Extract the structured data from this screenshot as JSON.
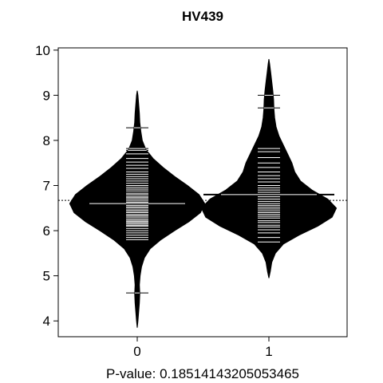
{
  "chart_data": {
    "type": "beanplot",
    "title": "HV439",
    "xlabel": "P-value: 0.18514143205053465",
    "ylabel": "",
    "categories": [
      "0",
      "1"
    ],
    "ylim": [
      3.65,
      10.05
    ],
    "yticks": [
      4,
      5,
      6,
      7,
      8,
      9,
      10
    ],
    "overall_mean": 6.67,
    "series": [
      {
        "group": "0",
        "mean": 6.6,
        "density": [
          [
            3.85,
            0.0
          ],
          [
            4.0,
            0.01
          ],
          [
            4.2,
            0.02
          ],
          [
            4.4,
            0.03
          ],
          [
            4.6,
            0.035
          ],
          [
            4.8,
            0.03
          ],
          [
            5.0,
            0.04
          ],
          [
            5.2,
            0.06
          ],
          [
            5.4,
            0.1
          ],
          [
            5.6,
            0.18
          ],
          [
            5.8,
            0.33
          ],
          [
            6.0,
            0.52
          ],
          [
            6.2,
            0.72
          ],
          [
            6.4,
            0.88
          ],
          [
            6.6,
            0.94
          ],
          [
            6.8,
            0.86
          ],
          [
            7.0,
            0.7
          ],
          [
            7.2,
            0.52
          ],
          [
            7.4,
            0.36
          ],
          [
            7.6,
            0.22
          ],
          [
            7.8,
            0.12
          ],
          [
            8.0,
            0.07
          ],
          [
            8.2,
            0.05
          ],
          [
            8.4,
            0.035
          ],
          [
            8.6,
            0.03
          ],
          [
            8.8,
            0.02
          ],
          [
            9.0,
            0.01
          ],
          [
            9.1,
            0.0
          ]
        ],
        "observations": [
          4.62,
          5.8,
          5.85,
          5.9,
          5.95,
          6.0,
          6.05,
          6.1,
          6.12,
          6.15,
          6.18,
          6.2,
          6.23,
          6.26,
          6.3,
          6.33,
          6.36,
          6.4,
          6.43,
          6.46,
          6.5,
          6.53,
          6.56,
          6.6,
          6.63,
          6.66,
          6.7,
          6.73,
          6.76,
          6.8,
          6.83,
          6.88,
          6.92,
          6.96,
          7.0,
          7.05,
          7.1,
          7.15,
          7.2,
          7.25,
          7.3,
          7.38,
          7.45,
          7.52,
          7.6,
          7.7,
          7.78,
          7.82,
          8.28
        ]
      },
      {
        "group": "1",
        "mean": 6.8,
        "density": [
          [
            4.95,
            0.0
          ],
          [
            5.1,
            0.02
          ],
          [
            5.3,
            0.04
          ],
          [
            5.5,
            0.09
          ],
          [
            5.7,
            0.2
          ],
          [
            5.9,
            0.42
          ],
          [
            6.1,
            0.68
          ],
          [
            6.3,
            0.88
          ],
          [
            6.5,
            0.94
          ],
          [
            6.7,
            0.82
          ],
          [
            6.9,
            0.6
          ],
          [
            7.1,
            0.44
          ],
          [
            7.3,
            0.36
          ],
          [
            7.5,
            0.32
          ],
          [
            7.7,
            0.26
          ],
          [
            7.9,
            0.2
          ],
          [
            8.1,
            0.14
          ],
          [
            8.3,
            0.1
          ],
          [
            8.5,
            0.08
          ],
          [
            8.7,
            0.07
          ],
          [
            8.9,
            0.065
          ],
          [
            9.1,
            0.055
          ],
          [
            9.3,
            0.04
          ],
          [
            9.5,
            0.025
          ],
          [
            9.7,
            0.01
          ],
          [
            9.8,
            0.0
          ]
        ],
        "observations": [
          5.75,
          5.85,
          5.95,
          6.02,
          6.08,
          6.12,
          6.18,
          6.22,
          6.28,
          6.32,
          6.36,
          6.4,
          6.44,
          6.48,
          6.52,
          6.56,
          6.6,
          6.65,
          6.7,
          6.75,
          6.8,
          6.85,
          6.9,
          6.95,
          7.0,
          7.08,
          7.15,
          7.22,
          7.3,
          7.4,
          7.5,
          7.62,
          7.75,
          7.82,
          8.72,
          9.0
        ]
      }
    ]
  }
}
